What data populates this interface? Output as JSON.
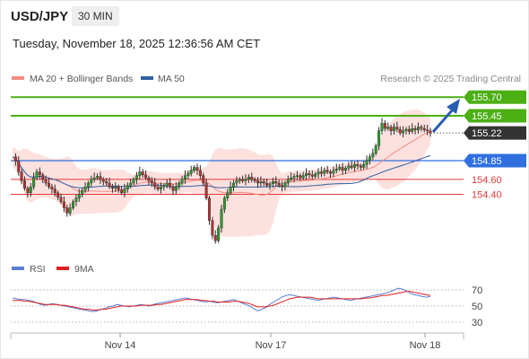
{
  "header": {
    "symbol": "USD/JPY",
    "timeframe": "30 MIN",
    "timestamp": "Tuesday, November 18, 2025 12:36:56 AM CET"
  },
  "legend": [
    {
      "label": "MA 20 + Bollinger Bands",
      "color": "#f08c84"
    },
    {
      "label": "MA 50",
      "color": "#2f5fa3"
    }
  ],
  "credit": "Research © 2025 Trading Central",
  "rsi_legend": [
    {
      "label": "RSI",
      "color": "#5b7fd6"
    },
    {
      "label": "9MA",
      "color": "#e02020"
    }
  ],
  "chart_data": [
    {
      "type": "candlestick",
      "x_labels": [
        "Nov 14",
        "Nov 17",
        "Nov 18"
      ],
      "last_price": 155.22,
      "levels": [
        {
          "value": 155.7,
          "label": "155.70",
          "role": "resistance",
          "color": "#4caf14"
        },
        {
          "value": 155.45,
          "label": "155.45",
          "role": "resistance",
          "color": "#4caf14"
        },
        {
          "value": 155.22,
          "label": "155.22",
          "role": "last",
          "color": "#333333"
        },
        {
          "value": 154.85,
          "label": "154.85",
          "role": "pivot",
          "color": "#2f6fe0"
        },
        {
          "value": 154.6,
          "label": "154.60",
          "role": "support",
          "color": "#e33a3a"
        },
        {
          "value": 154.4,
          "label": "154.40",
          "role": "support",
          "color": "#e33a3a"
        }
      ],
      "close_series": [
        154.9,
        154.84,
        154.7,
        154.58,
        154.48,
        154.42,
        154.5,
        154.62,
        154.7,
        154.66,
        154.6,
        154.55,
        154.5,
        154.47,
        154.42,
        154.36,
        154.3,
        154.22,
        154.15,
        154.22,
        154.3,
        154.35,
        154.4,
        154.45,
        154.5,
        154.55,
        154.6,
        154.62,
        154.64,
        154.6,
        154.57,
        154.55,
        154.5,
        154.48,
        154.5,
        154.46,
        154.42,
        154.47,
        154.52,
        154.55,
        154.6,
        154.65,
        154.7,
        154.66,
        154.62,
        154.58,
        154.55,
        154.5,
        154.47,
        154.5,
        154.52,
        154.55,
        154.5,
        154.45,
        154.5,
        154.55,
        154.6,
        154.65,
        154.68,
        154.72,
        154.76,
        154.72,
        154.65,
        154.55,
        154.35,
        154.05,
        153.85,
        153.78,
        153.95,
        154.2,
        154.35,
        154.42,
        154.5,
        154.55,
        154.58,
        154.6,
        154.58,
        154.6,
        154.63,
        154.6,
        154.58,
        154.55,
        154.57,
        154.55,
        154.52,
        154.54,
        154.57,
        154.55,
        154.52,
        154.5,
        154.55,
        154.6,
        154.62,
        154.64,
        154.65,
        154.62,
        154.65,
        154.68,
        154.66,
        154.64,
        154.67,
        154.7,
        154.68,
        154.72,
        154.7,
        154.68,
        154.72,
        154.74,
        154.76,
        154.72,
        154.75,
        154.78,
        154.76,
        154.8,
        154.78,
        154.76,
        154.8,
        154.85,
        154.9,
        154.95,
        155.05,
        155.25,
        155.35,
        155.28,
        155.3,
        155.25,
        155.3,
        155.27,
        155.22,
        155.25,
        155.27,
        155.24,
        155.28,
        155.26,
        155.3,
        155.28,
        155.26,
        155.25,
        155.22
      ]
    },
    {
      "type": "line",
      "name": "RSI",
      "levels": [
        70,
        50,
        30
      ],
      "rsi": [
        60,
        59,
        58,
        58,
        57,
        56,
        54,
        52,
        51,
        52,
        53,
        52,
        51,
        50,
        49,
        48,
        47,
        46,
        45,
        44,
        43,
        44,
        46,
        47,
        49,
        50,
        52,
        51,
        50,
        49,
        50,
        51,
        52,
        51,
        50,
        52,
        53,
        54,
        55,
        56,
        57,
        58,
        59,
        60,
        59,
        58,
        57,
        56,
        55,
        56,
        55,
        54,
        55,
        56,
        57,
        58,
        56,
        54,
        52,
        50,
        47,
        44,
        46,
        48,
        52,
        55,
        58,
        61,
        63,
        64,
        63,
        62,
        61,
        60,
        59,
        58,
        57,
        58,
        59,
        60,
        61,
        60,
        59,
        58,
        57,
        58,
        59,
        60,
        61,
        62,
        63,
        64,
        65,
        66,
        68,
        70,
        72,
        71,
        69,
        66,
        64,
        63,
        62,
        61,
        62
      ],
      "ma9": [
        57,
        57,
        57,
        56,
        56,
        55,
        54,
        53,
        52,
        52,
        52,
        52,
        51,
        51,
        50,
        49,
        48,
        47,
        46,
        46,
        45,
        45,
        46,
        46,
        47,
        48,
        49,
        50,
        50,
        50,
        50,
        50,
        51,
        51,
        51,
        51,
        52,
        52,
        53,
        54,
        55,
        56,
        57,
        58,
        58,
        58,
        58,
        57,
        57,
        56,
        56,
        55,
        55,
        55,
        55,
        56,
        56,
        55,
        54,
        53,
        51,
        49,
        49,
        49,
        50,
        51,
        53,
        55,
        57,
        59,
        60,
        61,
        61,
        61,
        61,
        60,
        59,
        59,
        59,
        59,
        59,
        59,
        59,
        59,
        59,
        59,
        59,
        59,
        60,
        60,
        61,
        62,
        63,
        63,
        64,
        65,
        66,
        67,
        68,
        68,
        67,
        66,
        65,
        64,
        63
      ]
    }
  ]
}
